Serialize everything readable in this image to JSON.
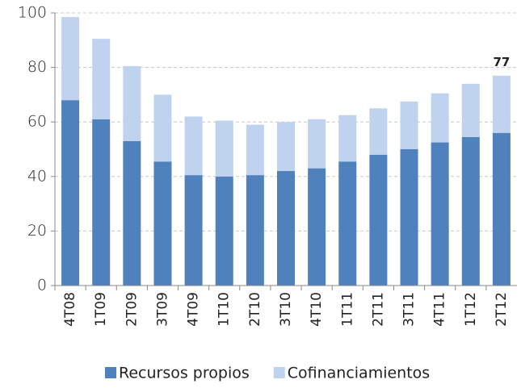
{
  "chart_data": {
    "type": "stacked-bar",
    "categories": [
      "4T08",
      "1T09",
      "2T09",
      "3T09",
      "4T09",
      "1T10",
      "2T10",
      "3T10",
      "4T10",
      "1T11",
      "2T11",
      "3T11",
      "4T11",
      "1T12",
      "2T12"
    ],
    "series": [
      {
        "name": "Recursos propios",
        "color": "#4f81bd",
        "values": [
          68,
          61,
          53,
          45.5,
          40.5,
          40,
          40.5,
          42,
          43,
          45.5,
          48,
          50,
          52.5,
          54.5,
          56
        ]
      },
      {
        "name": "Cofinanciamientos",
        "color": "#c0d3ee",
        "values": [
          30.5,
          29.5,
          27.5,
          24.5,
          21.5,
          20.5,
          18.5,
          18,
          18,
          17,
          17,
          17.5,
          18,
          19.5,
          21
        ]
      }
    ],
    "annotation": "77",
    "ylim": [
      0,
      100
    ],
    "yticks": [
      0,
      20,
      40,
      60,
      80,
      100
    ],
    "grid": true,
    "legend": "bottom"
  }
}
